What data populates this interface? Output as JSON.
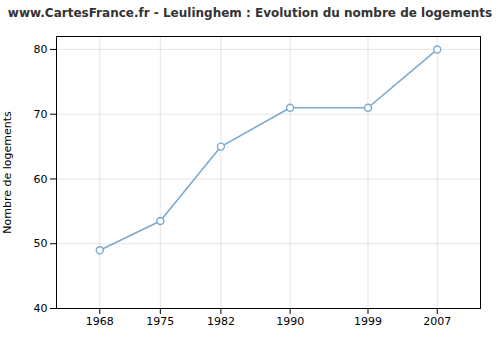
{
  "chart_data": {
    "type": "line",
    "title": "www.CartesFrance.fr - Leulinghem : Evolution du nombre de logements",
    "ylabel": "Nombre de logements",
    "x": [
      1968,
      1975,
      1982,
      1990,
      1999,
      2007
    ],
    "values": [
      49,
      53.5,
      65,
      71,
      71,
      80
    ],
    "color": "#7aaad0",
    "marker": "circle",
    "xlim": [
      1963,
      2012
    ],
    "xticks": [
      1968,
      1975,
      1982,
      1990,
      1999,
      2007
    ],
    "ylim": [
      40,
      82
    ],
    "yticks": [
      40,
      50,
      60,
      70,
      80
    ],
    "grid": true
  }
}
